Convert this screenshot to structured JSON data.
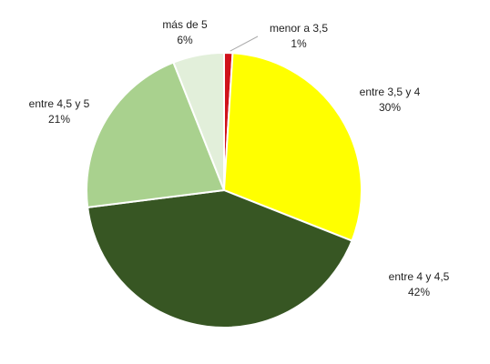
{
  "chart_data": {
    "type": "pie",
    "categories": [
      "menor a 3,5",
      "entre 3,5 y 4",
      "entre 4 y 4,5",
      "entre 4,5 y 5",
      "más de 5"
    ],
    "values": [
      1,
      30,
      42,
      21,
      6
    ],
    "value_labels": [
      "1%",
      "30%",
      "42%",
      "21%",
      "6%"
    ],
    "colors": [
      "#d0121b",
      "#ffff00",
      "#375623",
      "#a9d18e",
      "#e2efda"
    ]
  }
}
